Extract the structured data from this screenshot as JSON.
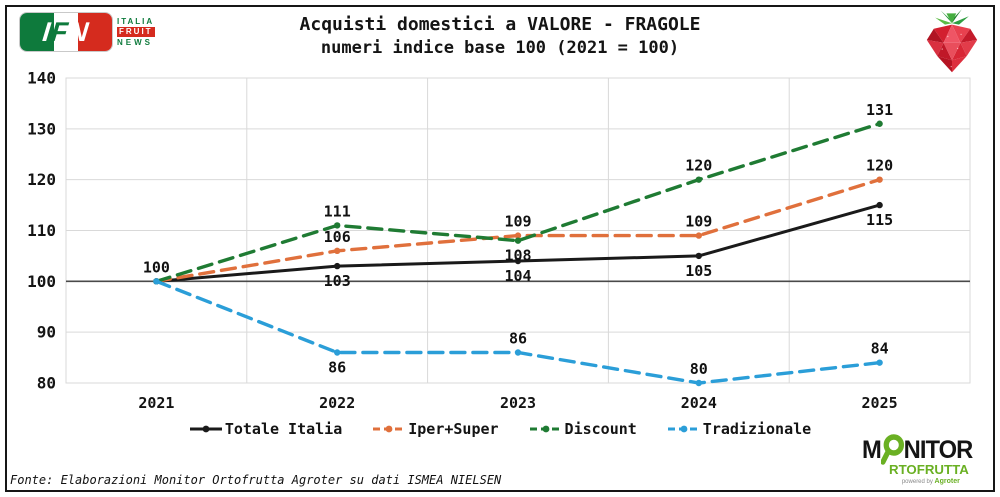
{
  "header": {
    "ifn_logo": {
      "letters": {
        "i": "I",
        "f": "F",
        "n": "N"
      },
      "italia": "ITALIA",
      "fruit": "FRUIT",
      "news": "NEWS"
    }
  },
  "chart_data": {
    "type": "line",
    "title": "Acquisti domestici a VALORE - FRAGOLE",
    "subtitle": "numeri indice base 100 (2021 = 100)",
    "categories": [
      "2021",
      "2022",
      "2023",
      "2024",
      "2025"
    ],
    "series": [
      {
        "key": "totale-italia",
        "name": "Totale Italia",
        "color": "#1a1a1a",
        "dash": "solid",
        "values": [
          100,
          103,
          104,
          105,
          115
        ],
        "label_pos": [
          "above",
          "below",
          "below",
          "below",
          "below"
        ]
      },
      {
        "key": "iper-super",
        "name": "Iper+Super",
        "color": "#e0703c",
        "dash": "dashed",
        "values": [
          100,
          106,
          109,
          109,
          120
        ],
        "label_pos": [
          null,
          "above",
          "above",
          "above",
          "above"
        ]
      },
      {
        "key": "discount",
        "name": "Discount",
        "color": "#1f7b33",
        "dash": "dashed",
        "values": [
          100,
          111,
          108,
          120,
          131
        ],
        "label_pos": [
          null,
          "above",
          "below",
          "above",
          "above"
        ]
      },
      {
        "key": "tradizionale",
        "name": "Tradizionale",
        "color": "#2b9ed8",
        "dash": "dashed",
        "values": [
          100,
          86,
          86,
          80,
          84
        ],
        "label_pos": [
          null,
          "below",
          "above",
          "above",
          "above"
        ]
      }
    ],
    "ylim": [
      80,
      140
    ],
    "yticks": [
      80,
      90,
      100,
      110,
      120,
      130,
      140
    ],
    "baseline": 100,
    "grid": true,
    "legend_position": "bottom",
    "xlabel": "",
    "ylabel": ""
  },
  "footer": {
    "source_text": "Fonte: Elaborazioni Monitor Ortofrutta Agroter su dati ISMEA NIELSEN",
    "monitor_logo": {
      "m": "M",
      "nitor": "NITOR",
      "rtofrutta": "RTOFRUTTA",
      "powered_by": "powered by",
      "agroter": "Agroter"
    }
  },
  "colors": {
    "grid": "#d9d9d9",
    "baseline": "#4a4a4a",
    "ifn_green": "#0e7a3c",
    "ifn_red": "#d52b1e",
    "monitor_green": "#6ab023"
  }
}
